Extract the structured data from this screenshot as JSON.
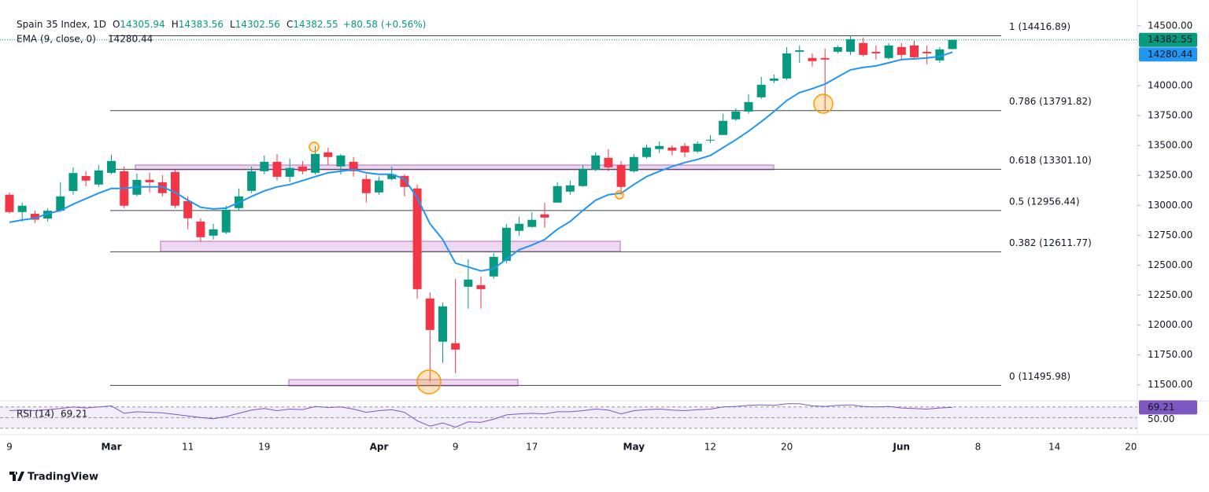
{
  "chart_data": [
    {
      "type": "candlestick",
      "title": "Spain 35 Index, 1D",
      "ohlc_labels": [
        "O",
        "H",
        "L",
        "C"
      ],
      "change": "+80.58 (+0.56%)",
      "categories": [
        "9",
        null,
        null,
        null,
        null,
        null,
        null,
        null,
        "Mar",
        null,
        null,
        null,
        null,
        null,
        "11",
        null,
        null,
        null,
        null,
        null,
        "19",
        null,
        null,
        null,
        null,
        null,
        null,
        null,
        null,
        "Apr",
        null,
        null,
        null,
        null,
        null,
        "9",
        null,
        null,
        null,
        null,
        null,
        "17",
        null,
        null,
        null,
        null,
        null,
        null,
        null,
        "May",
        null,
        null,
        null,
        null,
        null,
        "12",
        null,
        null,
        null,
        null,
        null,
        "20",
        null,
        null,
        null,
        null,
        null,
        null,
        null,
        null,
        "Jun",
        null,
        null,
        null,
        null,
        null,
        "8",
        null,
        null,
        null,
        null,
        null,
        "14",
        null,
        null,
        null,
        null,
        null,
        "20"
      ],
      "open": [
        13089,
        12944,
        12930,
        12890,
        12955,
        13120,
        13245,
        13174,
        13272,
        13285,
        13089,
        13213,
        13193,
        13279,
        13036,
        12865,
        12747,
        12774,
        12977,
        13121,
        13285,
        13364,
        13239,
        13325,
        13272,
        13443,
        13325,
        13364,
        13220,
        13108,
        13220,
        13246,
        13141,
        12222,
        11861,
        11848,
        12320,
        12333,
        12406,
        12537,
        12787,
        12820,
        12925,
        13023,
        13115,
        13161,
        13298,
        13397,
        13338,
        13285,
        13404,
        13470,
        13483,
        13496,
        13450,
        13542,
        13588,
        13719,
        13784,
        13903,
        14041,
        14060,
        14283,
        14231,
        14231,
        14283,
        14283,
        14356,
        14283,
        14231,
        14323,
        14336,
        14283,
        14211,
        14305.94,
        null,
        null,
        null,
        null,
        null,
        null,
        null,
        null,
        null,
        null,
        null,
        null,
        null,
        null
      ],
      "high": [
        13108,
        13023,
        12957,
        12977,
        13194,
        13318,
        13285,
        13338,
        13423,
        13325,
        13266,
        13272,
        13253,
        13299,
        13075,
        12892,
        12846,
        12997,
        13141,
        13325,
        13417,
        13430,
        13391,
        13371,
        13496,
        13482,
        13430,
        13404,
        13259,
        13240,
        13325,
        13259,
        13174,
        12274,
        12189,
        12386,
        12550,
        12406,
        12603,
        12846,
        12905,
        12944,
        13023,
        13194,
        13207,
        13338,
        13443,
        13469,
        13371,
        13430,
        13509,
        13535,
        13502,
        13522,
        13535,
        13587,
        13765,
        13811,
        13929,
        14073,
        14093,
        14323,
        14336,
        14270,
        14310,
        14336,
        14421,
        14402,
        14336,
        14356,
        14356,
        14375,
        14336,
        14323,
        14383.56,
        null,
        null,
        null,
        null,
        null,
        null,
        null,
        null,
        null,
        null,
        null,
        null,
        null,
        null
      ],
      "low": [
        12931,
        12865,
        12852,
        12865,
        12944,
        13089,
        13161,
        13154,
        13259,
        12977,
        13075,
        13108,
        13075,
        12977,
        12800,
        12695,
        12714,
        12760,
        12957,
        13102,
        13259,
        13207,
        13194,
        13259,
        13259,
        13338,
        13259,
        13240,
        13023,
        13089,
        13207,
        13075,
        12222,
        11526,
        11684,
        11598,
        12137,
        12137,
        12386,
        12517,
        12747,
        12813,
        12813,
        13023,
        13089,
        13154,
        13285,
        13285,
        13089,
        13272,
        13391,
        13437,
        13417,
        13404,
        13437,
        13522,
        13587,
        13706,
        13765,
        13889,
        14021,
        14047,
        14191,
        14159,
        13798,
        14270,
        14257,
        14244,
        14218,
        14218,
        14224,
        14218,
        14178,
        14191,
        14302.56,
        null,
        null,
        null,
        null,
        null,
        null,
        null,
        null,
        null,
        null,
        null,
        null,
        null,
        null
      ],
      "close": [
        12944,
        12997,
        12880,
        12955,
        13075,
        13270,
        13207,
        13292,
        13371,
        12997,
        13213,
        13193,
        13102,
        12997,
        12892,
        12734,
        12800,
        12964,
        13075,
        13285,
        13364,
        13239,
        13312,
        13285,
        13430,
        13404,
        13417,
        13285,
        13102,
        13207,
        13259,
        13154,
        12300,
        11959,
        12156,
        11795,
        12380,
        12300,
        12570,
        12813,
        12846,
        12879,
        12898,
        13161,
        13167,
        13305,
        13417,
        13318,
        13154,
        13404,
        13483,
        13496,
        13457,
        13443,
        13515,
        13548,
        13706,
        13784,
        13863,
        14008,
        14060,
        14270,
        14296,
        14205,
        14218,
        14322,
        14388,
        14257,
        14270,
        14336,
        14257,
        14237,
        14270,
        14303,
        14382.55,
        null,
        null,
        null,
        null,
        null,
        null,
        null,
        null,
        null,
        null,
        null,
        null,
        null,
        null
      ],
      "up_color": "#089981",
      "down_color": "#f23645",
      "series": [
        {
          "name": "EMA (9, close, 0)",
          "color": "#2196f3",
          "values": [
            12859,
            12878,
            12892,
            12931,
            12957,
            13010,
            13056,
            13102,
            13141,
            13141,
            13154,
            13154,
            13154,
            13108,
            13043,
            12984,
            12970,
            12977,
            13023,
            13075,
            13121,
            13154,
            13174,
            13207,
            13240,
            13272,
            13285,
            13299,
            13272,
            13259,
            13259,
            13220,
            13062,
            12846,
            12714,
            12517,
            12485,
            12452,
            12471,
            12550,
            12629,
            12668,
            12714,
            12800,
            12865,
            12957,
            13043,
            13089,
            13102,
            13174,
            13240,
            13285,
            13325,
            13358,
            13384,
            13417,
            13482,
            13548,
            13620,
            13699,
            13784,
            13876,
            13942,
            13975,
            14014,
            14073,
            14132,
            14152,
            14165,
            14191,
            14218,
            14224,
            14231,
            14244,
            14280.44,
            null,
            null,
            null,
            null,
            null,
            null,
            null,
            null,
            null,
            null,
            null,
            null,
            null,
            null
          ]
        }
      ],
      "fib_levels": [
        {
          "value": 14416.89,
          "label": "1 (14416.89)"
        },
        {
          "value": 13791.82,
          "label": "0.786 (13791.82)"
        },
        {
          "value": 13301.1,
          "label": "0.618 (13301.10)"
        },
        {
          "value": 12956.44,
          "label": "0.5 (12956.44)"
        },
        {
          "value": 12611.77,
          "label": "0.382 (12611.77)"
        },
        {
          "value": 11495.98,
          "label": "0 (11495.98)"
        }
      ],
      "fib_color": "#434651",
      "ylim": [
        11380,
        14650
      ],
      "yticks": [
        {
          "value": 11500,
          "label": "11500.00"
        },
        {
          "value": 11750,
          "label": "11750.00"
        },
        {
          "value": 12000,
          "label": "12000.00"
        },
        {
          "value": 12250,
          "label": "12250.00"
        },
        {
          "value": 12500,
          "label": "12500.00"
        },
        {
          "value": 12750,
          "label": "12750.00"
        },
        {
          "value": 13000,
          "label": "13000.00"
        },
        {
          "value": 13250,
          "label": "13250.00"
        },
        {
          "value": 13500,
          "label": "13500.00"
        },
        {
          "value": 13750,
          "label": "13750.00"
        },
        {
          "value": 14000,
          "label": "14000.00"
        },
        {
          "value": 14500,
          "label": "14500.00"
        }
      ]
    },
    {
      "type": "line",
      "series": [
        {
          "name": "RSI (14)",
          "color": "#7e57c2",
          "values": [
            63,
            64,
            63,
            65,
            67,
            70,
            68,
            70,
            72,
            58,
            61,
            60,
            59,
            56,
            53,
            50,
            48,
            52,
            58,
            64,
            67,
            63,
            66,
            65,
            71,
            69,
            70,
            66,
            60,
            63,
            65,
            60,
            44,
            34,
            40,
            32,
            42,
            41,
            47,
            55,
            57,
            58,
            57,
            61,
            61,
            63,
            66,
            64,
            57,
            63,
            65,
            66,
            64,
            63,
            65,
            66,
            70,
            71,
            73,
            74,
            73,
            76,
            76,
            72,
            71,
            73,
            74,
            71,
            70,
            71,
            68,
            67,
            66,
            68,
            69.21,
            null,
            null,
            null,
            null,
            null,
            null,
            null,
            null,
            null,
            null,
            null,
            null,
            null,
            null
          ]
        }
      ],
      "levels": [
        70,
        50,
        30
      ],
      "ylim": [
        21,
        80
      ],
      "yticks": [
        {
          "value": 50,
          "label": "50.00"
        }
      ]
    }
  ],
  "brand": "TradingView"
}
